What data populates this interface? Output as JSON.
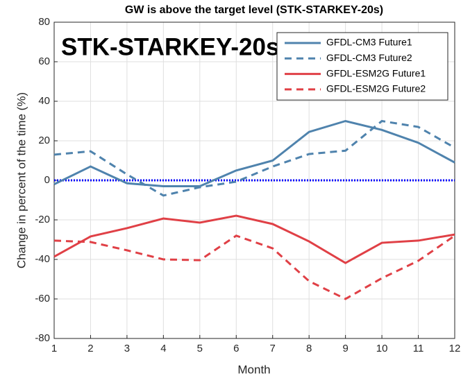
{
  "chart_data": {
    "type": "line",
    "title": "GW is above the target level (STK-STARKEY-20s)",
    "annotation": "STK-STARKEY-20s",
    "xlabel": "Month",
    "ylabel": "Change in percent of the time (%)",
    "x": [
      1,
      2,
      3,
      4,
      5,
      6,
      7,
      8,
      9,
      10,
      11,
      12
    ],
    "xlim": [
      1,
      12
    ],
    "xticks": [
      1,
      2,
      3,
      4,
      5,
      6,
      7,
      8,
      9,
      10,
      11,
      12
    ],
    "ylim": [
      -80,
      80
    ],
    "yticks": [
      -80,
      -60,
      -40,
      -20,
      0,
      20,
      40,
      60,
      80
    ],
    "grid": true,
    "legend": "upper right",
    "reference_line": {
      "value": 0,
      "color": "#0000ff"
    },
    "series": [
      {
        "name": "GFDL-CM3 Future1",
        "color": "#4f83ad",
        "line_style": "solid",
        "values": [
          -2,
          7,
          -1.5,
          -3,
          -3,
          5,
          10,
          24.5,
          30,
          25.5,
          19,
          9
        ]
      },
      {
        "name": "GFDL-CM3 Future2",
        "color": "#4f83ad",
        "line_style": "dashed",
        "values": [
          13,
          14.7,
          3,
          -7.7,
          -3.5,
          -0.7,
          7,
          13.3,
          15,
          30,
          27,
          16.5
        ]
      },
      {
        "name": "GFDL-ESM2G Future1",
        "color": "#e04046",
        "line_style": "solid",
        "values": [
          -38.6,
          -28.4,
          -24.2,
          -19.3,
          -21.4,
          -17.9,
          -22.1,
          -30.9,
          -41.8,
          -31.6,
          -30.5,
          -27.4
        ]
      },
      {
        "name": "GFDL-ESM2G Future2",
        "color": "#e04046",
        "line_style": "dashed",
        "values": [
          -30.5,
          -31.2,
          -35.4,
          -40,
          -40.4,
          -28,
          -34.4,
          -51,
          -60,
          -49.5,
          -40.7,
          -28
        ]
      }
    ]
  }
}
